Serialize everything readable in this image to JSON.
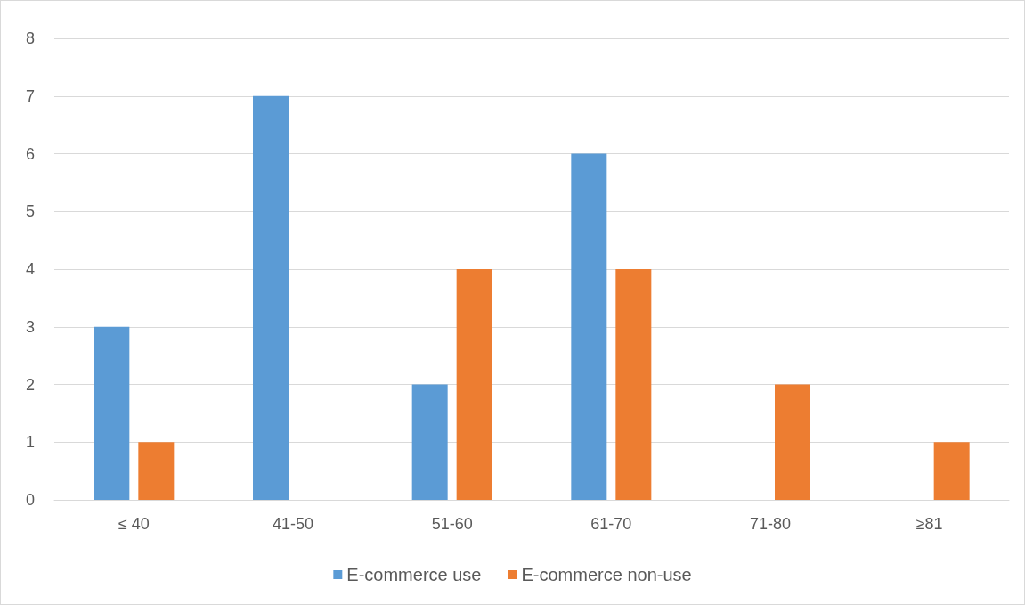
{
  "chart_data": {
    "type": "bar",
    "categories": [
      "≤ 40",
      "41-50",
      "51-60",
      "61-70",
      "71-80",
      "≥81"
    ],
    "series": [
      {
        "name": "E-commerce use",
        "color": "#5b9bd5",
        "values": [
          3,
          7,
          2,
          6,
          0,
          0
        ]
      },
      {
        "name": "E-commerce non-use",
        "color": "#ed7d31",
        "values": [
          1,
          0,
          4,
          4,
          2,
          1
        ]
      }
    ],
    "ylim": [
      0,
      8
    ],
    "yticks": [
      0,
      1,
      2,
      3,
      4,
      5,
      6,
      7,
      8
    ],
    "grid": "y",
    "legend": "bottom"
  }
}
